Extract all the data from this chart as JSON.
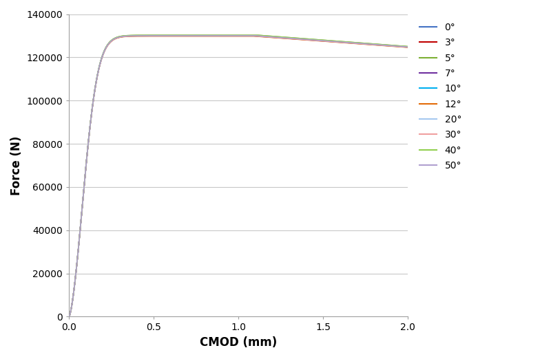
{
  "title": "",
  "xlabel": "CMOD (mm)",
  "ylabel": "Force (N)",
  "xlim": [
    0,
    2.0
  ],
  "ylim": [
    0,
    140000
  ],
  "xticks": [
    0,
    0.5,
    1.0,
    1.5,
    2.0
  ],
  "yticks": [
    0,
    20000,
    40000,
    60000,
    80000,
    100000,
    120000,
    140000
  ],
  "legend_labels": [
    "0°",
    "3°",
    "5°",
    "7°",
    "10°",
    "12°",
    "20°",
    "30°",
    "40°",
    "50°"
  ],
  "legend_colors": [
    "#4472C4",
    "#C00000",
    "#7CB033",
    "#7030A0",
    "#00B0F0",
    "#E36C09",
    "#A5C8F0",
    "#F0A0A0",
    "#92D050",
    "#B0A0D0"
  ],
  "background_color": "#FFFFFF",
  "grid_color": "#C8C8C8",
  "peak_forces": [
    130000,
    130100,
    130200,
    129900,
    130000,
    129800,
    130100,
    129900,
    130200,
    130000
  ],
  "end_forces": [
    124800,
    124900,
    125000,
    124700,
    124800,
    124600,
    124900,
    124700,
    125000,
    124800
  ],
  "peak_cmods": [
    1.1,
    1.11,
    1.12,
    1.09,
    1.1,
    1.09,
    1.11,
    1.09,
    1.12,
    1.1
  ],
  "figsize": [
    8.0,
    5.22
  ],
  "dpi": 100
}
